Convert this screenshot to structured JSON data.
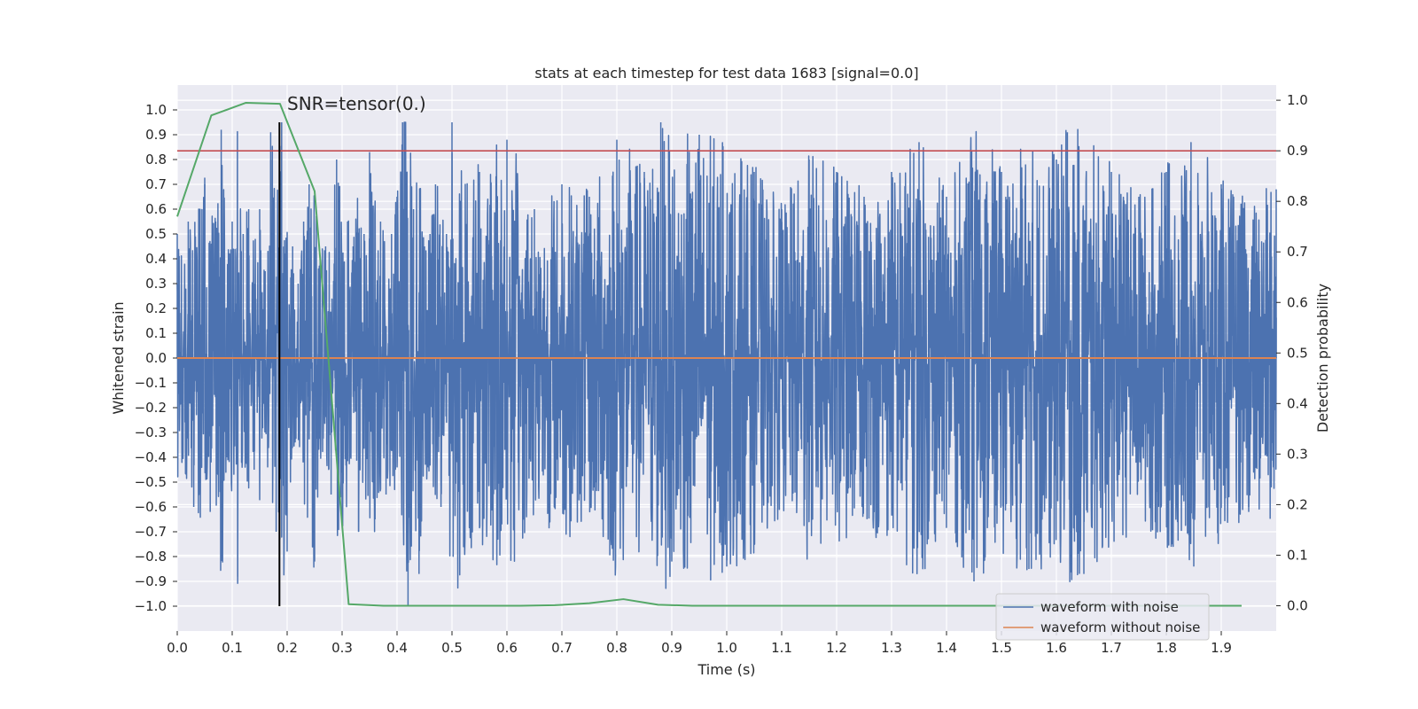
{
  "chart_data": {
    "type": "line",
    "title": "stats at each timestep for test data 1683 [signal=0.0]",
    "xlabel": "Time (s)",
    "ylabel_left": "Whitened strain",
    "ylabel_right": "Detection probability",
    "xlim": [
      0.0,
      2.0
    ],
    "ylim_left": [
      -1.1,
      1.1
    ],
    "ylim_right": [
      -0.05,
      1.03
    ],
    "x_ticks": [
      "0.0",
      "0.1",
      "0.2",
      "0.3",
      "0.4",
      "0.5",
      "0.6",
      "0.7",
      "0.8",
      "0.9",
      "1.0",
      "1.1",
      "1.2",
      "1.3",
      "1.4",
      "1.5",
      "1.6",
      "1.7",
      "1.8",
      "1.9"
    ],
    "y_left_ticks": [
      "1.0",
      "0.9",
      "0.8",
      "0.7",
      "0.6",
      "0.5",
      "0.4",
      "0.3",
      "0.2",
      "0.1",
      "0.0",
      "−0.1",
      "−0.2",
      "−0.3",
      "−0.4",
      "−0.5",
      "−0.6",
      "−0.7",
      "−0.8",
      "−0.9",
      "−1.0"
    ],
    "y_right_ticks": [
      "1.0",
      "0.9",
      "0.8",
      "0.7",
      "0.6",
      "0.5",
      "0.4",
      "0.3",
      "0.2",
      "0.1",
      "0.0"
    ],
    "grid": true,
    "annotation": "SNR=tensor(0.)",
    "marker_line_x": 0.186,
    "threshold": 0.9,
    "legend_position": "lower-right",
    "series": [
      {
        "name": "waveform with noise",
        "axis": "left",
        "color": "#4c72b0",
        "note": "dense whitened-strain noise trace; approximate envelope of peaks sampled below",
        "x": [
          0.0,
          0.01,
          0.02,
          0.03,
          0.04,
          0.05,
          0.06,
          0.07,
          0.08,
          0.09,
          0.1,
          0.11,
          0.12,
          0.13,
          0.14,
          0.15,
          0.16,
          0.17,
          0.18,
          0.19,
          0.2,
          0.21,
          0.22,
          0.23,
          0.24,
          0.25,
          0.26,
          0.27,
          0.28,
          0.29,
          0.3,
          0.31,
          0.32,
          0.33,
          0.34,
          0.35,
          0.36,
          0.37,
          0.38,
          0.39,
          0.4,
          0.41,
          0.42,
          0.43,
          0.44,
          0.45,
          0.46,
          0.47,
          0.48,
          0.49,
          0.5,
          0.55,
          0.6,
          0.65,
          0.7,
          0.75,
          0.8,
          0.85,
          0.88,
          0.9,
          0.95,
          1.0,
          1.05,
          1.1,
          1.15,
          1.2,
          1.25,
          1.3,
          1.35,
          1.4,
          1.45,
          1.5,
          1.55,
          1.6,
          1.62,
          1.65,
          1.7,
          1.75,
          1.8,
          1.85,
          1.9,
          1.95,
          2.0
        ],
        "values": [
          0.5,
          -0.4,
          0.55,
          -0.6,
          0.6,
          0.7,
          -0.62,
          0.55,
          0.92,
          -0.4,
          0.55,
          -0.91,
          0.5,
          0.6,
          -0.45,
          0.6,
          0.35,
          0.91,
          -0.7,
          0.95,
          -0.78,
          0.45,
          0.3,
          0.55,
          0.7,
          -0.82,
          0.4,
          0.45,
          -0.55,
          0.8,
          -0.67,
          0.55,
          0.45,
          -0.7,
          0.5,
          0.83,
          -0.65,
          0.55,
          -0.55,
          0.5,
          0.65,
          0.95,
          -1.0,
          0.6,
          -0.87,
          0.45,
          0.5,
          0.7,
          -0.6,
          0.5,
          0.95,
          0.75,
          0.88,
          0.6,
          0.7,
          0.65,
          0.88,
          0.75,
          0.95,
          -0.82,
          0.9,
          -0.84,
          0.75,
          0.6,
          0.8,
          0.75,
          0.65,
          0.75,
          0.87,
          0.65,
          -0.9,
          0.75,
          -0.85,
          0.8,
          0.91,
          -0.87,
          0.75,
          0.65,
          0.75,
          -0.84,
          0.7,
          -0.6,
          0.68
        ]
      },
      {
        "name": "waveform without noise",
        "axis": "left",
        "color": "#dd8452",
        "x": [
          0.0,
          2.0
        ],
        "values": [
          0.0,
          0.0
        ]
      },
      {
        "name": "detection probability",
        "axis": "right",
        "color": "#55a868",
        "x": [
          0.0,
          0.062,
          0.125,
          0.187,
          0.25,
          0.312,
          0.375,
          0.437,
          0.5,
          0.562,
          0.625,
          0.687,
          0.75,
          0.812,
          0.875,
          0.937,
          1.0,
          1.1,
          1.2,
          1.3,
          1.4,
          1.5,
          1.6,
          1.7,
          1.8,
          1.937
        ],
        "values": [
          0.77,
          0.97,
          0.995,
          0.993,
          0.82,
          0.003,
          0.0,
          0.0,
          0.0,
          0.0,
          0.0,
          0.001,
          0.005,
          0.013,
          0.002,
          0.0,
          0.0,
          0.0,
          0.0,
          0.0,
          0.0,
          0.0,
          0.0,
          0.0,
          0.0,
          0.0
        ]
      }
    ],
    "colors": {
      "plot_background": "#eaeaf2",
      "grid": "#ffffff",
      "threshold_line": "#c44e52",
      "marker_line": "#000000"
    }
  }
}
